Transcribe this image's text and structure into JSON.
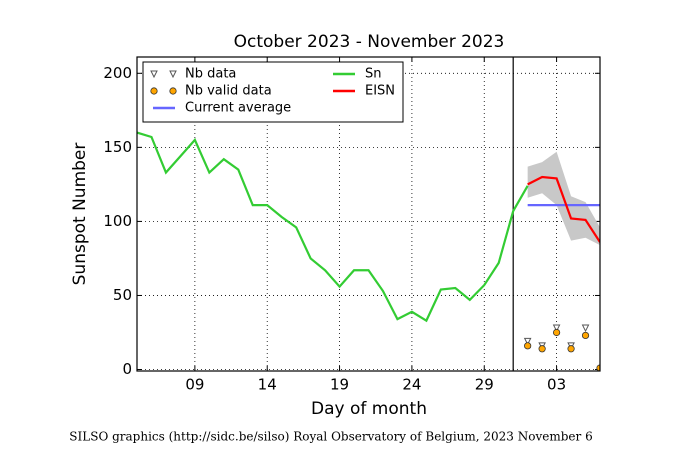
{
  "chart_data": {
    "type": "line",
    "title": "October 2023 - November 2023",
    "x_label": "Day of month",
    "y_label": "Sunspot Number",
    "footer": "SILSO graphics (http://sidc.be/silso) Royal Observatory of Belgium, 2023 November 6",
    "xlim": [
      5,
      37
    ],
    "ylim": [
      -1,
      211
    ],
    "xticks": [
      {
        "value": 9,
        "label": "09"
      },
      14,
      19,
      24,
      29,
      {
        "value": 34,
        "label": "03"
      }
    ],
    "yticks": [
      0,
      50,
      100,
      150,
      200
    ],
    "grid": true,
    "vline": 31,
    "legend": "upper left",
    "series": [
      {
        "name": "Nb data",
        "style": "triangle",
        "color": "#ffffff",
        "x": [
          32,
          33,
          34,
          35,
          36
        ],
        "values": [
          19,
          16,
          28,
          16,
          28
        ]
      },
      {
        "name": "Nb valid data",
        "style": "circle",
        "color": "#ffa500",
        "x": [
          32,
          33,
          34,
          35,
          36,
          37
        ],
        "values": [
          16,
          14,
          25,
          14,
          23,
          1
        ]
      },
      {
        "name": "Current average",
        "style": "line",
        "color": "#6666ff",
        "x": [
          32,
          37
        ],
        "values": [
          111,
          111
        ]
      },
      {
        "name": "Sn",
        "style": "line",
        "color": "#33cc33",
        "x": [
          5,
          6,
          7,
          8,
          9,
          10,
          11,
          12,
          13,
          14,
          15,
          16,
          17,
          18,
          19,
          20,
          21,
          22,
          23,
          24,
          25,
          26,
          27,
          28,
          29,
          30,
          31,
          32
        ],
        "values": [
          160,
          157,
          133,
          144,
          155,
          133,
          142,
          135,
          111,
          111,
          103,
          96,
          75,
          67,
          56,
          67,
          67,
          53,
          34,
          39,
          33,
          54,
          55,
          47,
          57,
          72,
          107,
          124
        ]
      },
      {
        "name": "EISN",
        "style": "line",
        "color": "#ff0000",
        "x": [
          32,
          33,
          34,
          35,
          36,
          37
        ],
        "values": [
          125,
          130,
          129,
          102,
          101,
          86
        ],
        "band": {
          "color": "#c8c8c8",
          "lower": [
            116,
            119,
            111,
            87,
            89,
            84
          ],
          "upper": [
            137,
            140,
            147,
            117,
            113,
            96
          ]
        }
      }
    ]
  }
}
